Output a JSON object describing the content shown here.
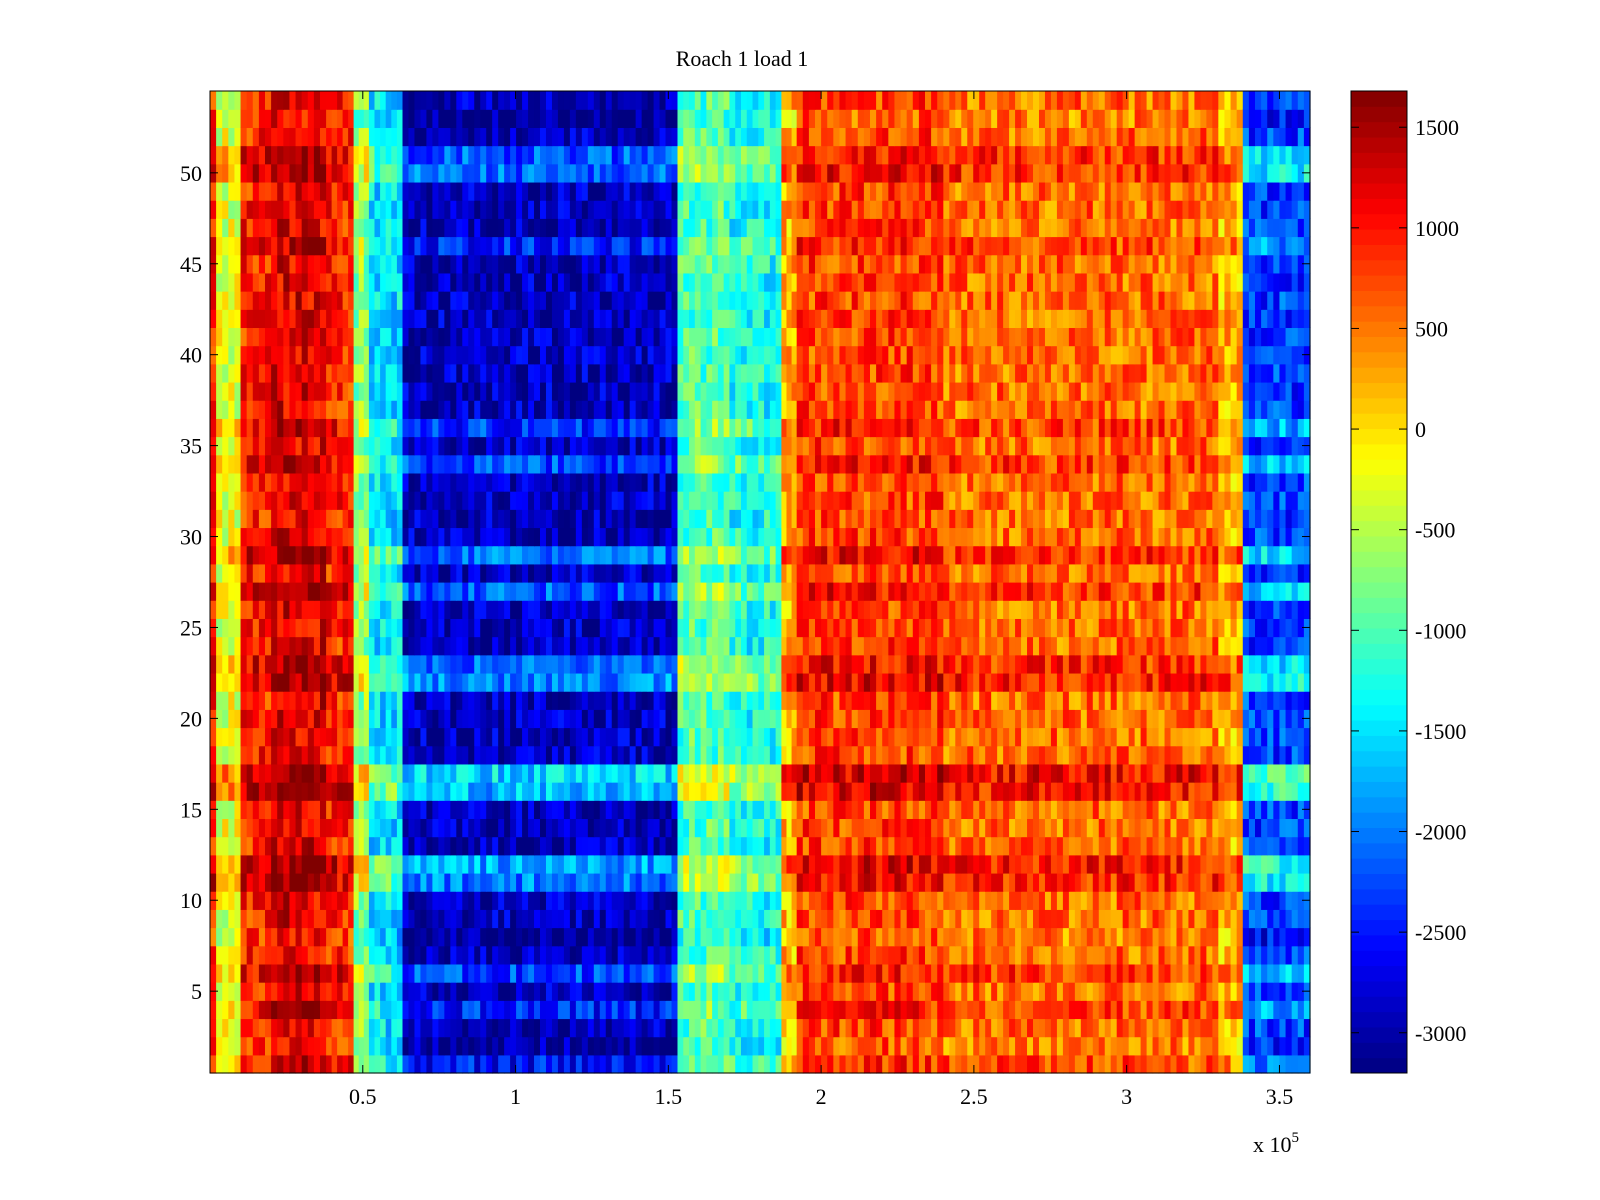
{
  "chart_data": {
    "type": "heatmap",
    "title": "Roach 1 load 1",
    "xlabel": "",
    "ylabel": "",
    "x_exponent_label": "x 10",
    "x_exponent_power": "5",
    "xlim": [
      0,
      3.6
    ],
    "ylim": [
      0.5,
      54.5
    ],
    "x_ticks": [
      0.5,
      1,
      1.5,
      2,
      2.5,
      3,
      3.5
    ],
    "x_tick_labels": [
      "0.5",
      "1",
      "1.5",
      "2",
      "2.5",
      "3",
      "3.5"
    ],
    "y_ticks": [
      5,
      10,
      15,
      20,
      25,
      30,
      35,
      40,
      45,
      50
    ],
    "y_tick_labels": [
      "5",
      "10",
      "15",
      "20",
      "25",
      "30",
      "35",
      "40",
      "45",
      "50"
    ],
    "colormap": "jet",
    "clim": [
      -3200,
      1680
    ],
    "colorbar_ticks": [
      1500,
      1000,
      500,
      0,
      -500,
      -1000,
      -1500,
      -2000,
      -2500,
      -3000
    ],
    "colorbar_tick_labels": [
      "1500",
      "1000",
      "500",
      "0",
      "-500",
      "-1000",
      "-1500",
      "-2000",
      "-2500",
      "-3000"
    ],
    "n_rows": 54,
    "column_bands": [
      {
        "x_start": 0.0,
        "x_end": 0.02,
        "value": 900
      },
      {
        "x_start": 0.02,
        "x_end": 0.1,
        "value": -300
      },
      {
        "x_start": 0.1,
        "x_end": 0.2,
        "value": 900
      },
      {
        "x_start": 0.2,
        "x_end": 0.38,
        "value": 1200
      },
      {
        "x_start": 0.38,
        "x_end": 0.47,
        "value": 900
      },
      {
        "x_start": 0.47,
        "x_end": 0.52,
        "value": -700
      },
      {
        "x_start": 0.52,
        "x_end": 0.63,
        "value": -1500
      },
      {
        "x_start": 0.63,
        "x_end": 1.53,
        "value": -2900
      },
      {
        "x_start": 1.53,
        "x_end": 1.7,
        "value": -1000
      },
      {
        "x_start": 1.7,
        "x_end": 1.87,
        "value": -1300
      },
      {
        "x_start": 1.87,
        "x_end": 1.92,
        "value": 200
      },
      {
        "x_start": 1.92,
        "x_end": 2.4,
        "value": 750
      },
      {
        "x_start": 2.4,
        "x_end": 3.3,
        "value": 550
      },
      {
        "x_start": 3.3,
        "x_end": 3.38,
        "value": 200
      },
      {
        "x_start": 3.38,
        "x_end": 3.6,
        "value": -2300
      }
    ],
    "row_effects": [
      {
        "row": 1,
        "value": 400
      },
      {
        "row": 2,
        "value": -200
      },
      {
        "row": 4,
        "value": 500
      },
      {
        "row": 6,
        "value": 700
      },
      {
        "row": 8,
        "value": -300
      },
      {
        "row": 11,
        "value": 1000
      },
      {
        "row": 12,
        "value": 1200
      },
      {
        "row": 16,
        "value": 1300
      },
      {
        "row": 17,
        "value": 1500
      },
      {
        "row": 22,
        "value": 1100
      },
      {
        "row": 23,
        "value": 900
      },
      {
        "row": 27,
        "value": 800
      },
      {
        "row": 29,
        "value": 900
      },
      {
        "row": 34,
        "value": 700
      },
      {
        "row": 36,
        "value": 600
      },
      {
        "row": 46,
        "value": 500
      },
      {
        "row": 50,
        "value": 900
      },
      {
        "row": 51,
        "value": 800
      },
      {
        "row": 53,
        "value": -300
      }
    ]
  }
}
